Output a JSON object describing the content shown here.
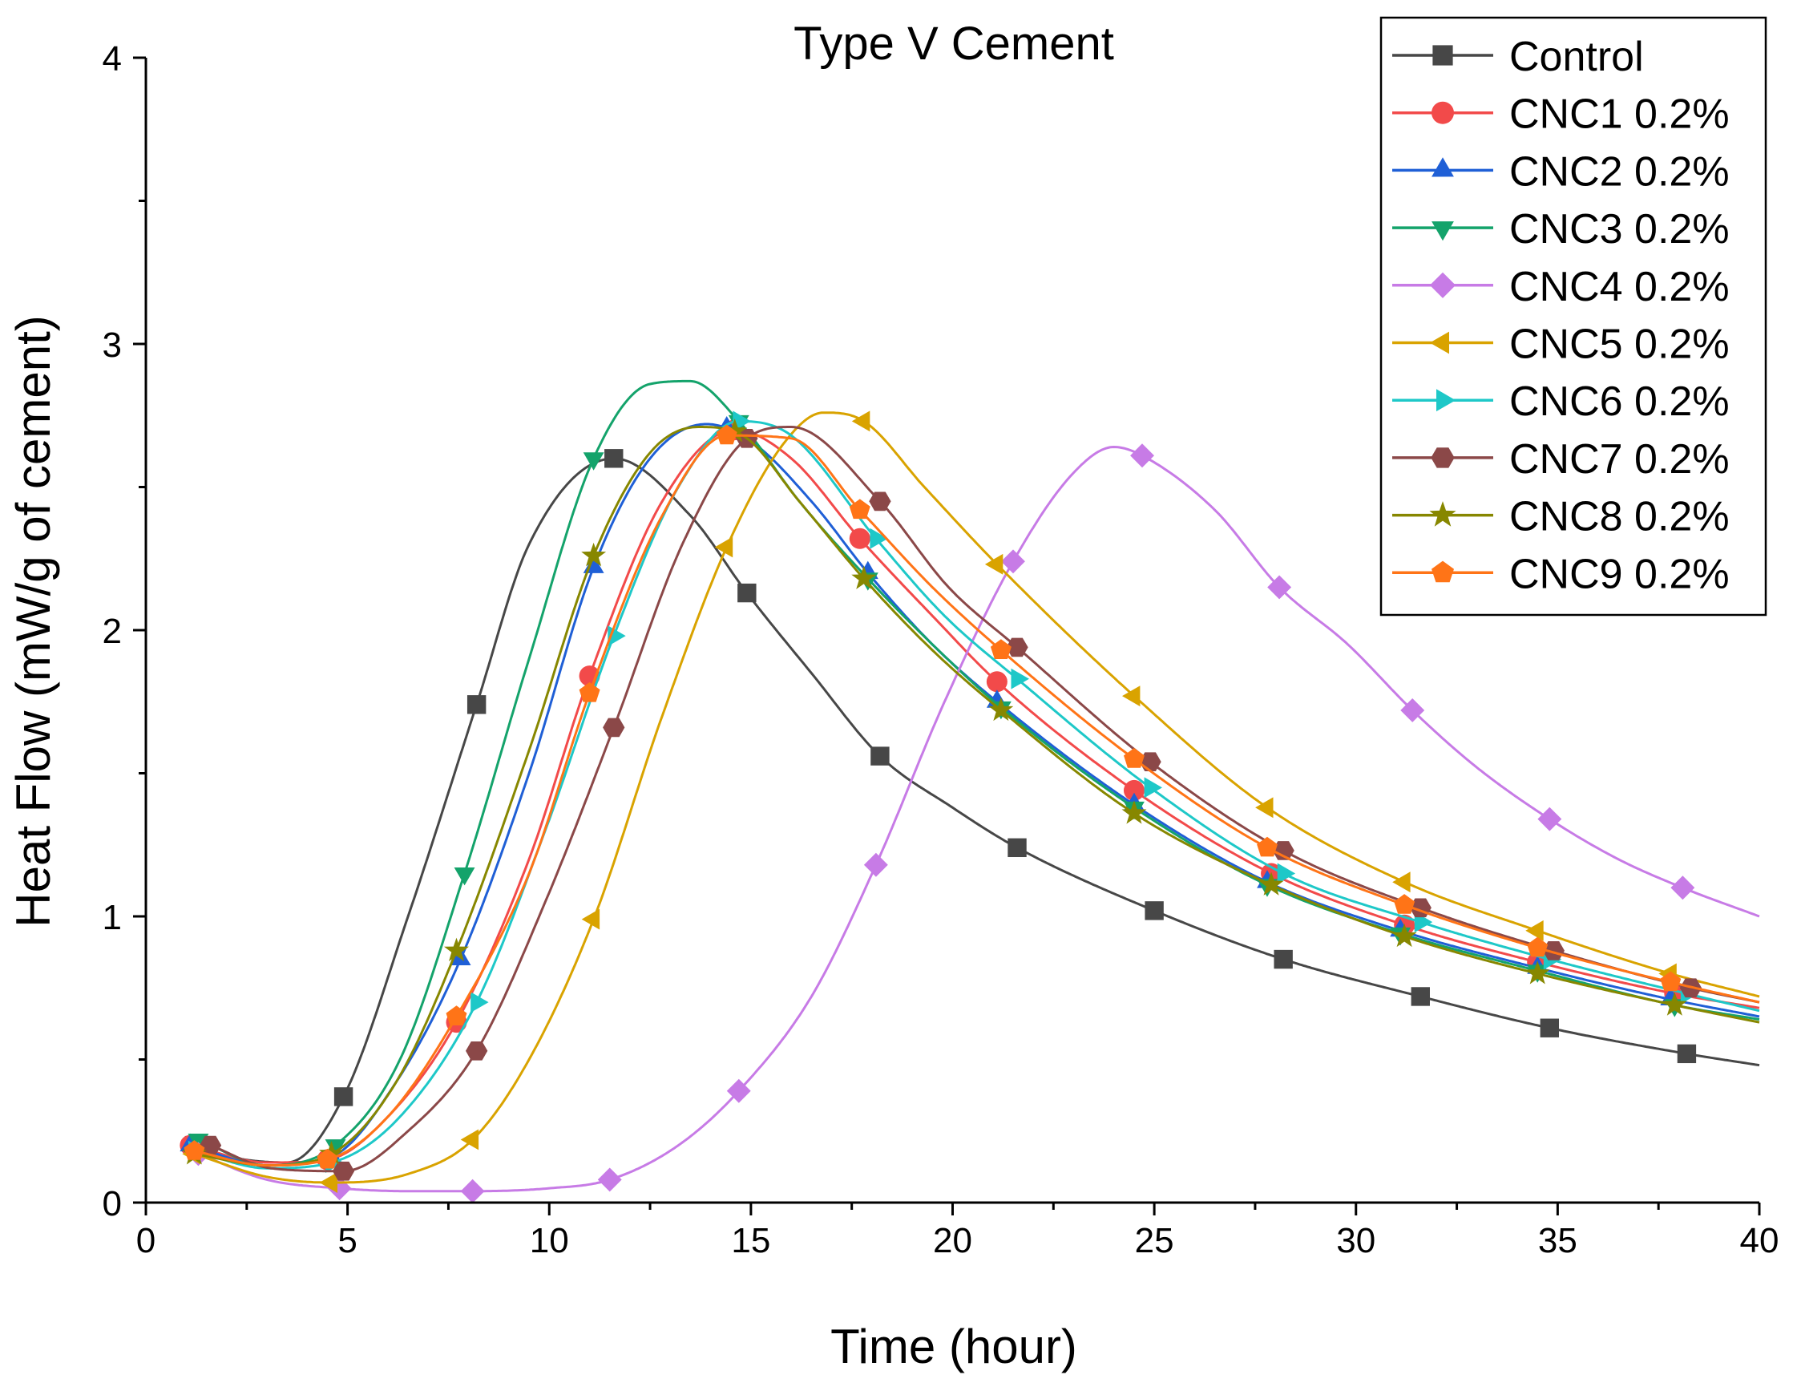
{
  "chart_data": {
    "type": "line",
    "title": "Type V Cement",
    "xlabel": "Time (hour)",
    "ylabel": "Heat Flow (mW/g of cement)",
    "xlim": [
      0,
      40
    ],
    "ylim": [
      0,
      4
    ],
    "xticks": [
      "0",
      "5",
      "10",
      "15",
      "20",
      "25",
      "30",
      "35",
      "40"
    ],
    "yticks": [
      "0",
      "1",
      "2",
      "3",
      "4"
    ],
    "legend_position": "top-right",
    "series": [
      {
        "name": "Control",
        "color": "#474747",
        "marker": "square",
        "x": [
          1.2,
          1.5,
          3.5,
          4.9,
          6.5,
          8.2,
          9.5,
          11.6,
          13.5,
          14.9,
          16.5,
          18.2,
          20,
          21.6,
          25,
          28.2,
          31.6,
          34.8,
          38.2,
          40
        ],
        "y": [
          0.2,
          0.18,
          0.14,
          0.37,
          1.0,
          1.74,
          2.3,
          2.6,
          2.4,
          2.13,
          1.85,
          1.56,
          1.38,
          1.24,
          1.02,
          0.85,
          0.72,
          0.61,
          0.52,
          0.48
        ]
      },
      {
        "name": "CNC1 0.2%",
        "color": "#f24a4a",
        "marker": "circle",
        "x": [
          1.1,
          3,
          4.5,
          6,
          7.7,
          9.5,
          11,
          12.8,
          14.6,
          16,
          17.7,
          19.5,
          21.1,
          24.5,
          27.9,
          31.2,
          34.5,
          37.9,
          40
        ],
        "y": [
          0.2,
          0.14,
          0.15,
          0.3,
          0.63,
          1.2,
          1.84,
          2.45,
          2.7,
          2.6,
          2.32,
          2.05,
          1.82,
          1.44,
          1.15,
          0.97,
          0.84,
          0.73,
          0.68
        ]
      },
      {
        "name": "CNC2 0.2%",
        "color": "#1f5fd6",
        "marker": "triangle-up",
        "x": [
          1.1,
          3,
          4.6,
          6.2,
          7.8,
          9.5,
          11.1,
          12.5,
          13.9,
          15,
          16.5,
          17.9,
          19.5,
          21.1,
          24.5,
          27.8,
          31.1,
          34.5,
          37.8,
          40
        ],
        "y": [
          0.2,
          0.13,
          0.16,
          0.42,
          0.85,
          1.5,
          2.22,
          2.6,
          2.72,
          2.66,
          2.45,
          2.2,
          1.95,
          1.75,
          1.39,
          1.12,
          0.95,
          0.82,
          0.71,
          0.65
        ]
      },
      {
        "name": "CNC3 0.2%",
        "color": "#14a36b",
        "marker": "triangle-down",
        "x": [
          1.3,
          3,
          4.7,
          6.3,
          7.9,
          9.5,
          11.1,
          12.5,
          13.5,
          14.7,
          16.2,
          17.9,
          19.5,
          21.2,
          24.5,
          27.8,
          31.1,
          34.5,
          37.9,
          40
        ],
        "y": [
          0.22,
          0.13,
          0.2,
          0.5,
          1.15,
          1.9,
          2.6,
          2.86,
          2.87,
          2.73,
          2.45,
          2.18,
          1.95,
          1.73,
          1.38,
          1.11,
          0.94,
          0.81,
          0.69,
          0.64
        ]
      },
      {
        "name": "CNC4 0.2%",
        "color": "#c77be6",
        "marker": "diamond",
        "x": [
          1.3,
          3,
          4.8,
          6.5,
          8.1,
          10,
          11.5,
          13.2,
          14.7,
          16.5,
          18.1,
          19.8,
          21.5,
          23,
          24,
          24.7,
          26.5,
          28.1,
          29.8,
          31.4,
          33,
          34.8,
          36.5,
          38.1,
          40
        ],
        "y": [
          0.17,
          0.08,
          0.05,
          0.04,
          0.04,
          0.05,
          0.08,
          0.2,
          0.39,
          0.72,
          1.18,
          1.75,
          2.24,
          2.55,
          2.64,
          2.61,
          2.42,
          2.15,
          1.95,
          1.72,
          1.52,
          1.34,
          1.2,
          1.1,
          1.0
        ]
      },
      {
        "name": "CNC5 0.2%",
        "color": "#d9a300",
        "marker": "triangle-left",
        "x": [
          1.2,
          3,
          4.6,
          6.5,
          8.1,
          9.5,
          11.1,
          12.8,
          14.4,
          15.8,
          16.8,
          17.8,
          19.3,
          21.1,
          24.5,
          27.8,
          31.2,
          34.5,
          37.8,
          40
        ],
        "y": [
          0.17,
          0.09,
          0.07,
          0.1,
          0.22,
          0.5,
          0.99,
          1.7,
          2.29,
          2.65,
          2.76,
          2.73,
          2.5,
          2.23,
          1.77,
          1.38,
          1.12,
          0.95,
          0.8,
          0.72
        ]
      },
      {
        "name": "CNC6 0.2%",
        "color": "#1ec8c8",
        "marker": "triangle-right",
        "x": [
          1.2,
          3,
          4.6,
          6.3,
          8.2,
          9.9,
          11.6,
          13.2,
          14.7,
          16,
          18.1,
          19.8,
          21.6,
          24.9,
          28.2,
          31.6,
          34.8,
          38.2,
          40
        ],
        "y": [
          0.18,
          0.12,
          0.14,
          0.3,
          0.7,
          1.3,
          1.98,
          2.5,
          2.73,
          2.68,
          2.32,
          2.05,
          1.83,
          1.45,
          1.15,
          0.98,
          0.85,
          0.73,
          0.67
        ]
      },
      {
        "name": "CNC7 0.2%",
        "color": "#8b4848",
        "marker": "hexagon",
        "x": [
          1.6,
          3.1,
          4.9,
          6.5,
          8.2,
          9.9,
          11.6,
          13.3,
          14.9,
          16,
          18.2,
          19.9,
          21.6,
          24.9,
          28.2,
          31.6,
          34.9,
          38.3,
          40
        ],
        "y": [
          0.2,
          0.12,
          0.11,
          0.25,
          0.53,
          1.05,
          1.66,
          2.3,
          2.67,
          2.71,
          2.45,
          2.15,
          1.94,
          1.54,
          1.23,
          1.03,
          0.88,
          0.75,
          0.7
        ]
      },
      {
        "name": "CNC8 0.2%",
        "color": "#878700",
        "marker": "star",
        "x": [
          1.2,
          3,
          4.6,
          6.2,
          7.7,
          9.5,
          11.1,
          12.5,
          13.7,
          14.8,
          16.2,
          17.8,
          19.5,
          21.2,
          24.5,
          27.9,
          31.2,
          34.5,
          37.9,
          40
        ],
        "y": [
          0.17,
          0.13,
          0.17,
          0.42,
          0.88,
          1.58,
          2.26,
          2.62,
          2.71,
          2.68,
          2.45,
          2.18,
          1.93,
          1.72,
          1.36,
          1.11,
          0.93,
          0.8,
          0.69,
          0.63
        ]
      },
      {
        "name": "CNC9 0.2%",
        "color": "#ff7417",
        "marker": "pentagon",
        "x": [
          1.2,
          3,
          4.5,
          6,
          7.7,
          9.5,
          11,
          12.8,
          14.4,
          16,
          17.7,
          19.5,
          21.2,
          24.5,
          27.8,
          31.2,
          34.5,
          37.8,
          40
        ],
        "y": [
          0.18,
          0.13,
          0.15,
          0.3,
          0.65,
          1.15,
          1.78,
          2.4,
          2.68,
          2.67,
          2.42,
          2.15,
          1.93,
          1.55,
          1.24,
          1.04,
          0.89,
          0.77,
          0.7
        ]
      }
    ],
    "markers_x": [
      [
        1.2,
        4.9,
        8.2,
        11.6,
        14.9,
        18.2,
        21.6,
        25,
        28.2,
        31.6,
        34.8,
        38.2
      ],
      [
        1.1,
        4.5,
        7.7,
        11,
        14.6,
        17.7,
        21.1,
        24.5,
        27.9,
        31.2,
        34.5,
        37.9
      ],
      [
        1.1,
        4.6,
        7.8,
        11.1,
        14.4,
        17.9,
        21.1,
        24.5,
        27.8,
        31.1,
        34.5,
        37.8
      ],
      [
        1.3,
        4.7,
        7.9,
        11.1,
        14.7,
        17.9,
        21.2,
        24.5,
        27.8,
        31.1,
        34.5,
        37.9
      ],
      [
        1.3,
        4.8,
        8.1,
        11.5,
        14.7,
        18.1,
        21.5,
        24.7,
        28.1,
        31.4,
        34.8,
        38.1
      ],
      [
        1.2,
        4.6,
        8.1,
        11.1,
        14.4,
        17.8,
        21.1,
        24.5,
        27.8,
        31.2,
        34.5,
        37.8
      ],
      [
        1.2,
        4.6,
        8.2,
        11.6,
        14.7,
        18.1,
        21.6,
        24.9,
        28.2,
        31.6,
        34.8,
        38.2
      ],
      [
        1.6,
        4.9,
        8.2,
        11.6,
        14.9,
        18.2,
        21.6,
        24.9,
        28.2,
        31.6,
        34.9,
        38.3
      ],
      [
        1.2,
        4.6,
        7.7,
        11.1,
        14.6,
        17.8,
        21.2,
        24.5,
        27.9,
        31.2,
        34.5,
        37.9
      ],
      [
        1.2,
        4.5,
        7.7,
        11,
        14.4,
        17.7,
        21.2,
        24.5,
        27.8,
        31.2,
        34.5,
        37.8
      ]
    ]
  }
}
